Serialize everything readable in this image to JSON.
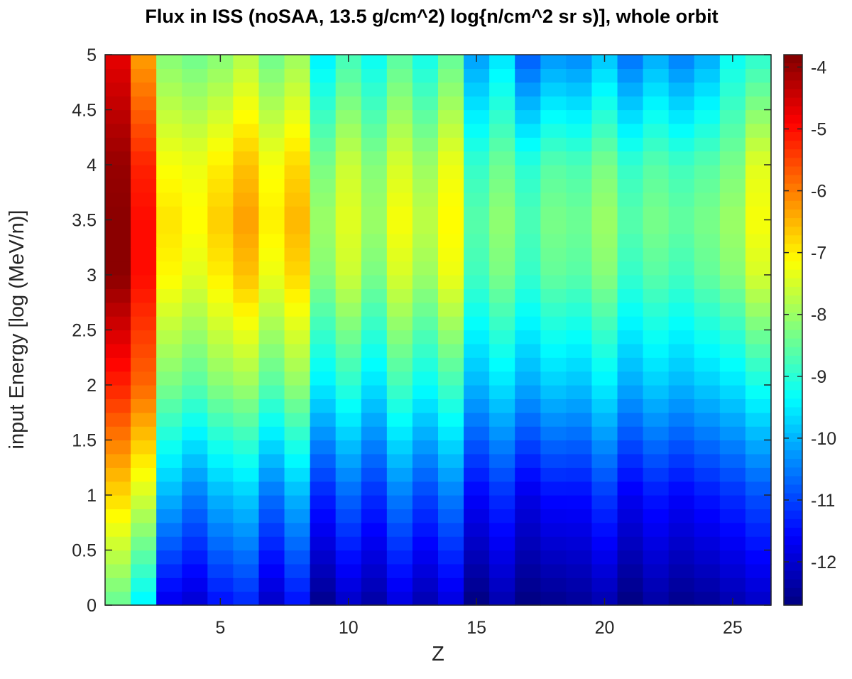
{
  "chart_data": {
    "type": "heatmap",
    "title": "Flux in ISS (noSAA, 13.5 g/cm^2) log{n/cm^2 sr s)], whole orbit",
    "xlabel": "Z",
    "ylabel": "input Energy [log (MeV/n)]",
    "xlim": [
      0.5,
      26.5
    ],
    "ylim": [
      0,
      5
    ],
    "x_ticks": [
      5,
      10,
      15,
      20,
      25
    ],
    "y_ticks": [
      0,
      0.5,
      1,
      1.5,
      2,
      2.5,
      3,
      3.5,
      4,
      4.5,
      5
    ],
    "y_tick_labels": [
      "0",
      "0.5",
      "1",
      "1.5",
      "2",
      "2.5",
      "3",
      "3.5",
      "4",
      "4.5",
      "5"
    ],
    "colormap": "jet",
    "color_range": [
      -12.7,
      -3.8
    ],
    "colorbar_ticks": [
      -4,
      -5,
      -6,
      -7,
      -8,
      -9,
      -10,
      -11,
      -12
    ],
    "z_values": [
      1,
      2,
      3,
      4,
      5,
      6,
      7,
      8,
      9,
      10,
      11,
      12,
      13,
      14,
      15,
      16,
      17,
      18,
      19,
      20,
      21,
      22,
      23,
      24,
      25,
      26
    ],
    "energy_bins": 40,
    "profile_energy_points": [
      0,
      1,
      2,
      3,
      3.5,
      4,
      5
    ],
    "log_flux_profiles": [
      {
        "z": 1,
        "values": [
          -8.5,
          -6.8,
          -5.2,
          -3.9,
          -3.9,
          -4.0,
          -4.7
        ]
      },
      {
        "z": 2,
        "values": [
          -9.5,
          -7.5,
          -5.8,
          -5.0,
          -5.0,
          -5.2,
          -6.3
        ]
      },
      {
        "z": 3,
        "values": [
          -11.8,
          -10.0,
          -8.3,
          -7.1,
          -6.9,
          -7.2,
          -8.2
        ]
      },
      {
        "z": 4,
        "values": [
          -12.0,
          -10.5,
          -8.6,
          -7.4,
          -7.1,
          -7.3,
          -8.4
        ]
      },
      {
        "z": 5,
        "values": [
          -11.5,
          -10.0,
          -8.2,
          -7.0,
          -6.7,
          -7.0,
          -8.2
        ]
      },
      {
        "z": 6,
        "values": [
          -11.3,
          -9.8,
          -8.0,
          -6.6,
          -6.3,
          -6.6,
          -7.8
        ]
      },
      {
        "z": 7,
        "values": [
          -12.1,
          -10.6,
          -8.6,
          -7.3,
          -7.0,
          -7.2,
          -8.4
        ]
      },
      {
        "z": 8,
        "values": [
          -11.5,
          -10.0,
          -8.1,
          -6.8,
          -6.5,
          -6.8,
          -8.0
        ]
      },
      {
        "z": 9,
        "values": [
          -12.6,
          -11.3,
          -9.5,
          -8.2,
          -8.0,
          -8.3,
          -9.5
        ]
      },
      {
        "z": 10,
        "values": [
          -12.1,
          -10.7,
          -9.0,
          -7.6,
          -7.4,
          -7.6,
          -8.8
        ]
      },
      {
        "z": 11,
        "values": [
          -12.4,
          -11.2,
          -9.6,
          -8.3,
          -8.0,
          -8.2,
          -9.3
        ]
      },
      {
        "z": 12,
        "values": [
          -11.9,
          -10.5,
          -8.8,
          -7.5,
          -7.2,
          -7.5,
          -8.6
        ]
      },
      {
        "z": 13,
        "values": [
          -12.3,
          -11.0,
          -9.3,
          -8.0,
          -7.7,
          -8.0,
          -9.2
        ]
      },
      {
        "z": 14,
        "values": [
          -11.9,
          -10.5,
          -8.8,
          -7.3,
          -7.1,
          -7.3,
          -8.5
        ]
      },
      {
        "z": 15,
        "values": [
          -12.7,
          -11.6,
          -10.0,
          -8.8,
          -8.6,
          -8.9,
          -10.2
        ]
      },
      {
        "z": 16,
        "values": [
          -12.3,
          -11.2,
          -9.6,
          -8.3,
          -8.1,
          -8.4,
          -9.6
        ]
      },
      {
        "z": 17,
        "values": [
          -12.7,
          -11.8,
          -10.1,
          -8.9,
          -8.7,
          -9.0,
          -10.8
        ]
      },
      {
        "z": 18,
        "values": [
          -12.6,
          -11.5,
          -9.8,
          -8.5,
          -8.3,
          -8.6,
          -10.3
        ]
      },
      {
        "z": 19,
        "values": [
          -12.5,
          -11.5,
          -9.9,
          -8.6,
          -8.4,
          -8.7,
          -10.4
        ]
      },
      {
        "z": 20,
        "values": [
          -12.3,
          -11.1,
          -9.5,
          -8.2,
          -8.0,
          -8.3,
          -9.9
        ]
      },
      {
        "z": 21,
        "values": [
          -12.7,
          -11.7,
          -10.1,
          -8.9,
          -8.6,
          -8.9,
          -10.6
        ]
      },
      {
        "z": 22,
        "values": [
          -12.4,
          -11.4,
          -9.8,
          -8.6,
          -8.3,
          -8.6,
          -10.1
        ]
      },
      {
        "z": 23,
        "values": [
          -12.6,
          -11.6,
          -10.0,
          -8.8,
          -8.5,
          -8.8,
          -10.5
        ]
      },
      {
        "z": 24,
        "values": [
          -12.5,
          -11.4,
          -9.8,
          -8.5,
          -8.3,
          -8.6,
          -10.1
        ]
      },
      {
        "z": 25,
        "values": [
          -12.3,
          -11.2,
          -9.6,
          -8.2,
          -8.0,
          -8.3,
          -9.3
        ]
      },
      {
        "z": 26,
        "values": [
          -12.1,
          -10.9,
          -9.2,
          -7.5,
          -7.2,
          -7.4,
          -9.0
        ]
      }
    ]
  }
}
